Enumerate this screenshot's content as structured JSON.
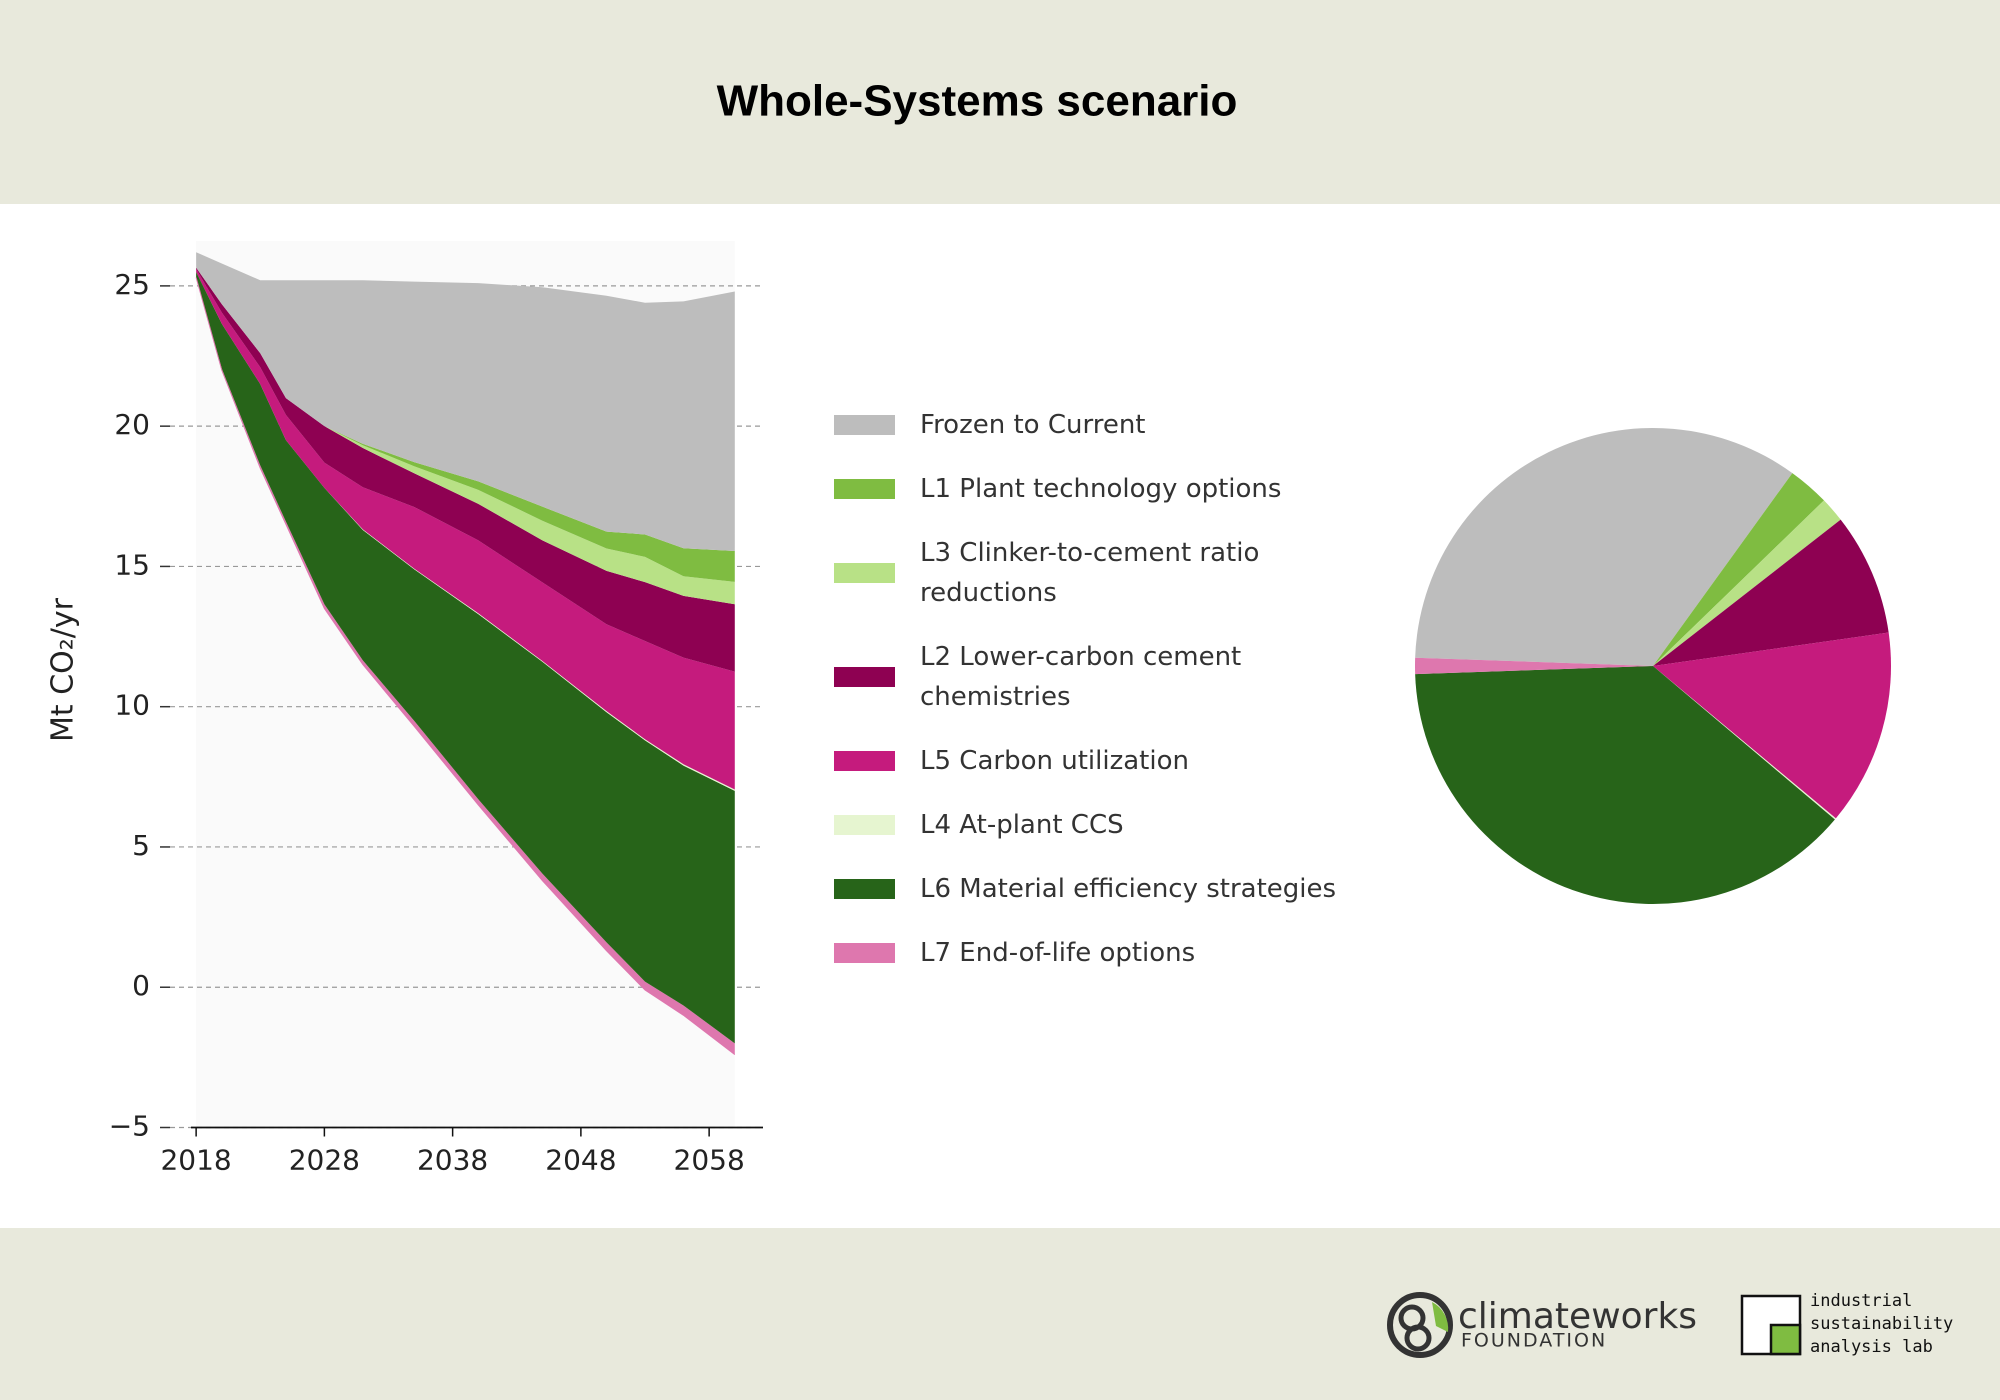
{
  "title": "Whole-Systems scenario",
  "chart_data": [
    {
      "type": "stackedarea",
      "ylabel": "Mt CO₂/yr",
      "x": [
        2018,
        2020,
        2023,
        2025,
        2028,
        2031,
        2035,
        2040,
        2045,
        2050,
        2053,
        2056,
        2060
      ],
      "baseline": [
        25.3,
        22.0,
        18.5,
        16.5,
        13.5,
        11.5,
        9.3,
        6.5,
        3.8,
        1.3,
        -0.1,
        -1.0,
        -2.4
      ],
      "series": [
        {
          "name": "Frozen to Current",
          "color": "#bdbdbd",
          "values": [
            0.55,
            1.45,
            2.6,
            4.2,
            5.2,
            5.83,
            6.43,
            7.07,
            7.82,
            8.41,
            8.26,
            8.8,
            9.25
          ]
        },
        {
          "name": "L1 Plant technology options",
          "color": "#7fbc41",
          "values": [
            0,
            0,
            0,
            0,
            0,
            0.05,
            0.15,
            0.3,
            0.5,
            0.6,
            0.8,
            1.0,
            1.1
          ]
        },
        {
          "name": "L3 Clinker-to-cement ratio reductions",
          "color": "#b8e186",
          "values": [
            0,
            0,
            0,
            0,
            0,
            0.1,
            0.25,
            0.5,
            0.7,
            0.8,
            0.9,
            0.7,
            0.8
          ]
        },
        {
          "name": "L2 Lower-carbon cement chemistries",
          "color": "#8e0152",
          "values": [
            0.05,
            0.3,
            0.5,
            0.6,
            1.3,
            1.4,
            1.2,
            1.3,
            1.5,
            1.9,
            2.1,
            2.2,
            2.4
          ]
        },
        {
          "name": "L5 Carbon utilization",
          "color": "#c51b7d",
          "values": [
            0.1,
            0.4,
            0.6,
            0.9,
            0.9,
            1.5,
            2.2,
            2.6,
            2.8,
            3.1,
            3.5,
            3.8,
            4.2
          ]
        },
        {
          "name": "L4 At-plant CCS",
          "color": "#e6f5d0",
          "values": [
            0,
            0,
            0,
            0,
            0,
            0.02,
            0.02,
            0.03,
            0.03,
            0.04,
            0.04,
            0.05,
            0.05
          ]
        },
        {
          "name": "L6 Material efficiency strategies",
          "color": "#276419",
          "values": [
            0.2,
            1.6,
            2.9,
            2.9,
            4.15,
            4.65,
            5.4,
            6.6,
            7.55,
            8.2,
            8.6,
            8.55,
            9.0
          ]
        },
        {
          "name": "L7 End-of-life options",
          "color": "#de77ae",
          "values": [
            0,
            0.05,
            0.1,
            0.1,
            0.15,
            0.15,
            0.2,
            0.2,
            0.25,
            0.3,
            0.3,
            0.35,
            0.4
          ]
        }
      ],
      "xlim": [
        2017.6,
        2062.2
      ],
      "ylim": [
        -5,
        26.6
      ],
      "xticks": [
        2018,
        2028,
        2038,
        2048,
        2058
      ],
      "yticks": [
        {
          "value": -5,
          "label": "−5"
        },
        0,
        5,
        10,
        15,
        20,
        25
      ],
      "grid": true
    },
    {
      "type": "pie",
      "values": [
        34.4,
        2.8,
        1.7,
        8.3,
        13.3,
        0.1,
        38.3,
        1.1
      ],
      "colors": [
        "#bdbdbd",
        "#7fbc41",
        "#b8e186",
        "#8e0152",
        "#c51b7d",
        "#e6f5d0",
        "#276419",
        "#de77ae"
      ]
    }
  ],
  "footer": {
    "climateworks": "climateworks",
    "foundation": "FOUNDATION",
    "isal_lines": [
      "industrial",
      "sustainability",
      "analysis lab"
    ]
  }
}
